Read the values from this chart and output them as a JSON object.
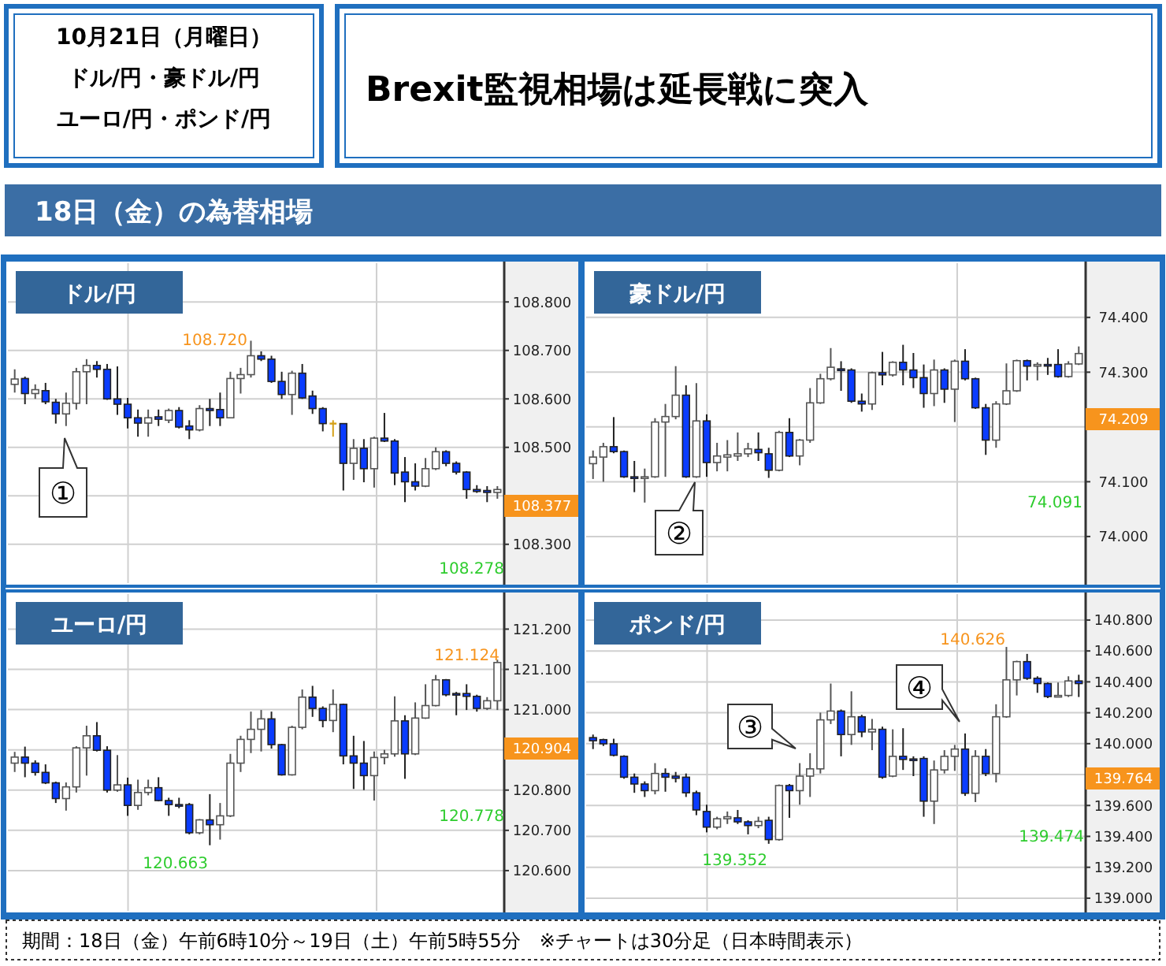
{
  "chart_data": [
    {
      "type": "other",
      "title": "Brexit監視相場は延長戦に突入",
      "subtitle": "18日（金）の為替相場",
      "annotations": [
        "10月21日（月曜日）",
        "ドル/円・豪ドル/円",
        "ユーロ/円・ポンド/円",
        "期間：18日（金）午前6時10分～19日（土）午前5時55分　※チャートは30分足（日本時間表示）"
      ]
    },
    {
      "type": "candlestick",
      "title": "ドル/円",
      "categories": [
        null,
        null,
        null,
        null,
        null,
        null,
        null,
        null,
        null,
        null,
        null,
        null,
        null,
        null,
        null,
        null,
        null,
        null,
        null,
        null,
        null,
        null,
        null,
        null,
        null,
        null,
        null,
        null,
        null,
        null,
        null,
        null,
        null,
        null,
        null,
        null,
        null,
        null,
        null,
        null,
        null,
        null,
        null,
        null,
        null,
        null,
        null,
        null
      ],
      "ohlc": [
        [
          108.63,
          108.661,
          108.613,
          108.641
        ],
        [
          108.642,
          108.646,
          108.589,
          108.611
        ],
        [
          108.611,
          108.63,
          108.6,
          108.619
        ],
        [
          108.617,
          108.633,
          108.589,
          108.594
        ],
        [
          108.593,
          108.6,
          108.549,
          108.569
        ],
        [
          108.569,
          108.613,
          108.544,
          108.591
        ],
        [
          108.591,
          108.664,
          108.578,
          108.656
        ],
        [
          108.656,
          108.682,
          108.589,
          108.669
        ],
        [
          108.669,
          108.678,
          108.644,
          108.661
        ],
        [
          108.661,
          108.672,
          108.598,
          108.6
        ],
        [
          108.6,
          108.667,
          108.567,
          108.589
        ],
        [
          108.589,
          108.602,
          108.539,
          108.561
        ],
        [
          108.561,
          108.578,
          108.522,
          108.55
        ],
        [
          108.55,
          108.578,
          108.522,
          108.561
        ],
        [
          108.563,
          108.578,
          108.544,
          108.558
        ],
        [
          108.556,
          108.58,
          108.55,
          108.576
        ],
        [
          108.576,
          108.583,
          108.539,
          108.542
        ],
        [
          108.544,
          108.556,
          108.517,
          108.536
        ],
        [
          108.536,
          108.587,
          108.533,
          108.58
        ],
        [
          108.58,
          108.6,
          108.544,
          108.576
        ],
        [
          108.578,
          108.613,
          108.544,
          108.561
        ],
        [
          108.561,
          108.656,
          108.561,
          108.642
        ],
        [
          108.642,
          108.664,
          108.611,
          108.65
        ],
        [
          108.65,
          108.72,
          108.644,
          108.689
        ],
        [
          108.689,
          108.698,
          108.678,
          108.682
        ],
        [
          108.682,
          108.689,
          108.633,
          108.636
        ],
        [
          108.636,
          108.656,
          108.6,
          108.609
        ],
        [
          108.609,
          108.658,
          108.567,
          108.653
        ],
        [
          108.653,
          108.672,
          108.6,
          108.602
        ],
        [
          108.606,
          108.617,
          108.569,
          108.58
        ],
        [
          108.58,
          108.583,
          108.533,
          108.549
        ],
        [
          108.549,
          108.556,
          108.522,
          108.549
        ],
        [
          108.549,
          108.549,
          108.411,
          108.467
        ],
        [
          108.467,
          108.517,
          108.433,
          108.498
        ],
        [
          108.498,
          108.517,
          108.428,
          108.456
        ],
        [
          108.456,
          108.522,
          108.417,
          108.519
        ],
        [
          108.519,
          108.571,
          108.511,
          108.513
        ],
        [
          108.513,
          108.517,
          108.422,
          108.447
        ],
        [
          108.449,
          108.48,
          108.387,
          108.429
        ],
        [
          108.429,
          108.467,
          108.411,
          108.42
        ],
        [
          108.42,
          108.478,
          108.418,
          108.456
        ],
        [
          108.456,
          108.5,
          108.453,
          108.491
        ],
        [
          108.491,
          108.494,
          108.461,
          108.467
        ],
        [
          108.467,
          108.471,
          108.444,
          108.449
        ],
        [
          108.449,
          108.451,
          108.394,
          108.413
        ],
        [
          108.413,
          108.422,
          108.406,
          108.409
        ],
        [
          108.411,
          108.42,
          108.387,
          108.407
        ],
        [
          108.407,
          108.42,
          108.394,
          108.413
        ]
      ],
      "ylim": [
        108.22,
        108.88
      ],
      "yticks": [
        {
          "value": 108.3,
          "label": "108.300"
        },
        {
          "value": 108.4,
          "label": null
        },
        {
          "value": 108.5,
          "label": "108.500"
        },
        {
          "value": 108.6,
          "label": "108.600"
        },
        {
          "value": 108.7,
          "label": "108.700"
        },
        {
          "value": 108.8,
          "label": "108.800"
        }
      ],
      "grid": "y",
      "annotations": [
        "108.720",
        "108.278",
        "108.377",
        "①"
      ]
    },
    {
      "type": "candlestick",
      "title": "豪ドル/円",
      "categories": [
        null,
        null,
        null,
        null,
        null,
        null,
        null,
        null,
        null,
        null,
        null,
        null,
        null,
        null,
        null,
        null,
        null,
        null,
        null,
        null,
        null,
        null,
        null,
        null,
        null,
        null,
        null,
        null,
        null,
        null,
        null,
        null,
        null,
        null,
        null,
        null,
        null,
        null,
        null,
        null,
        null,
        null,
        null,
        null,
        null,
        null,
        null,
        null
      ],
      "ohlc": [
        [
          74.133,
          74.157,
          74.105,
          74.145
        ],
        [
          74.145,
          74.171,
          74.1,
          74.164
        ],
        [
          74.164,
          74.218,
          74.152,
          74.155
        ],
        [
          74.155,
          74.157,
          74.107,
          74.109
        ],
        [
          74.109,
          74.138,
          74.081,
          74.106
        ],
        [
          74.106,
          74.124,
          74.062,
          74.109
        ],
        [
          74.109,
          74.216,
          74.107,
          74.209
        ],
        [
          74.209,
          74.242,
          74.109,
          74.219
        ],
        [
          74.219,
          74.311,
          74.214,
          74.258
        ],
        [
          74.258,
          74.276,
          74.107,
          74.109
        ],
        [
          74.109,
          74.28,
          74.107,
          74.211
        ],
        [
          74.211,
          74.223,
          74.109,
          74.135
        ],
        [
          74.135,
          74.171,
          74.119,
          74.147
        ],
        [
          74.145,
          74.176,
          74.119,
          74.149
        ],
        [
          74.147,
          74.19,
          74.138,
          74.151
        ],
        [
          74.151,
          74.171,
          74.145,
          74.16
        ],
        [
          74.159,
          74.19,
          74.138,
          74.153
        ],
        [
          74.151,
          74.162,
          74.107,
          74.121
        ],
        [
          74.121,
          74.193,
          74.119,
          74.19
        ],
        [
          74.19,
          74.216,
          74.145,
          74.147
        ],
        [
          74.147,
          74.178,
          74.13,
          74.176
        ],
        [
          74.176,
          74.271,
          74.171,
          74.244
        ],
        [
          74.244,
          74.297,
          74.242,
          74.288
        ],
        [
          74.288,
          74.344,
          74.285,
          74.309
        ],
        [
          74.306,
          74.32,
          74.266,
          74.303
        ],
        [
          74.304,
          74.307,
          74.244,
          74.247
        ],
        [
          74.247,
          74.261,
          74.228,
          74.242
        ],
        [
          74.242,
          74.301,
          74.231,
          74.299
        ],
        [
          74.299,
          74.337,
          74.276,
          74.295
        ],
        [
          74.295,
          74.32,
          74.292,
          74.318
        ],
        [
          74.318,
          74.35,
          74.276,
          74.304
        ],
        [
          74.304,
          74.335,
          74.271,
          74.29
        ],
        [
          74.29,
          74.314,
          74.235,
          74.261
        ],
        [
          74.261,
          74.323,
          74.238,
          74.304
        ],
        [
          74.304,
          74.307,
          74.244,
          74.269
        ],
        [
          74.269,
          74.323,
          74.209,
          74.32
        ],
        [
          74.32,
          74.342,
          74.285,
          74.288
        ],
        [
          74.288,
          74.29,
          74.233,
          74.235
        ],
        [
          74.235,
          74.242,
          74.149,
          74.176
        ],
        [
          74.176,
          74.247,
          74.162,
          74.242
        ],
        [
          74.242,
          74.316,
          74.24,
          74.266
        ],
        [
          74.266,
          74.323,
          74.264,
          74.321
        ],
        [
          74.321,
          74.323,
          74.285,
          74.311
        ],
        [
          74.311,
          74.318,
          74.285,
          74.314
        ],
        [
          74.314,
          74.326,
          74.295,
          74.312
        ],
        [
          74.314,
          74.342,
          74.29,
          74.292
        ],
        [
          74.292,
          74.32,
          74.29,
          74.315
        ],
        [
          74.315,
          74.347,
          74.313,
          74.334
        ]
      ],
      "ylim": [
        73.915,
        74.499
      ],
      "yticks": [
        {
          "value": 74.0,
          "label": "74.000"
        },
        {
          "value": 74.1,
          "label": "74.100"
        },
        {
          "value": 74.2,
          "label": null
        },
        {
          "value": 74.3,
          "label": "74.300"
        },
        {
          "value": 74.4,
          "label": "74.400"
        }
      ],
      "grid": "y",
      "annotations": [
        "74.091",
        "74.209",
        "②"
      ]
    },
    {
      "type": "candlestick",
      "title": "ユーロ/円",
      "categories": [
        null,
        null,
        null,
        null,
        null,
        null,
        null,
        null,
        null,
        null,
        null,
        null,
        null,
        null,
        null,
        null,
        null,
        null,
        null,
        null,
        null,
        null,
        null,
        null,
        null,
        null,
        null,
        null,
        null,
        null,
        null,
        null,
        null,
        null,
        null,
        null,
        null,
        null,
        null,
        null,
        null,
        null,
        null,
        null,
        null,
        null,
        null,
        null
      ],
      "ohlc": [
        [
          120.867,
          120.895,
          120.845,
          120.882
        ],
        [
          120.882,
          120.908,
          120.832,
          120.867
        ],
        [
          120.867,
          120.874,
          120.836,
          120.844
        ],
        [
          120.844,
          120.864,
          120.815,
          120.818
        ],
        [
          120.818,
          120.821,
          120.768,
          120.779
        ],
        [
          120.779,
          120.819,
          120.749,
          120.808
        ],
        [
          120.808,
          120.909,
          120.794,
          120.905
        ],
        [
          120.905,
          120.96,
          120.836,
          120.935
        ],
        [
          120.935,
          120.969,
          120.896,
          120.899
        ],
        [
          120.899,
          120.909,
          120.794,
          120.8
        ],
        [
          120.8,
          120.887,
          120.796,
          120.813
        ],
        [
          120.813,
          120.831,
          120.736,
          120.762
        ],
        [
          120.762,
          120.826,
          120.751,
          120.794
        ],
        [
          120.794,
          120.826,
          120.787,
          120.806
        ],
        [
          120.806,
          120.832,
          120.772,
          120.774
        ],
        [
          120.774,
          120.781,
          120.736,
          120.764
        ],
        [
          120.764,
          120.781,
          120.755,
          120.762
        ],
        [
          120.764,
          120.768,
          120.69,
          120.694
        ],
        [
          120.694,
          120.728,
          120.69,
          120.726
        ],
        [
          120.726,
          120.79,
          120.663,
          120.714
        ],
        [
          120.714,
          120.768,
          120.677,
          120.736
        ],
        [
          120.736,
          120.89,
          120.733,
          120.867
        ],
        [
          120.867,
          120.935,
          120.845,
          120.926
        ],
        [
          120.926,
          120.995,
          120.892,
          120.951
        ],
        [
          120.951,
          120.999,
          120.896,
          120.977
        ],
        [
          120.977,
          120.995,
          120.903,
          120.913
        ],
        [
          120.913,
          120.915,
          120.836,
          120.838
        ],
        [
          120.838,
          120.96,
          120.836,
          120.956
        ],
        [
          120.956,
          121.05,
          120.951,
          121.031
        ],
        [
          121.031,
          121.059,
          120.982,
          121.003
        ],
        [
          121.003,
          121.008,
          120.956,
          120.973
        ],
        [
          120.973,
          121.05,
          120.944,
          121.013
        ],
        [
          121.013,
          121.015,
          120.864,
          120.885
        ],
        [
          120.885,
          120.935,
          120.803,
          120.867
        ],
        [
          120.867,
          120.922,
          120.8,
          120.836
        ],
        [
          120.836,
          120.896,
          120.774,
          120.881
        ],
        [
          120.881,
          120.9,
          120.864,
          120.89
        ],
        [
          120.89,
          121.033,
          120.883,
          120.972
        ],
        [
          120.972,
          120.986,
          120.828,
          120.89
        ],
        [
          120.89,
          121.018,
          120.887,
          120.979
        ],
        [
          120.979,
          121.063,
          120.977,
          121.01
        ],
        [
          121.01,
          121.086,
          121.008,
          121.074
        ],
        [
          121.074,
          121.076,
          121.033,
          121.037
        ],
        [
          121.04,
          121.044,
          120.986,
          121.037
        ],
        [
          121.04,
          121.063,
          120.999,
          121.033
        ],
        [
          121.033,
          121.037,
          120.995,
          121.003
        ],
        [
          121.003,
          121.031,
          120.999,
          121.022
        ],
        [
          121.022,
          121.124,
          120.999,
          121.117
        ]
      ],
      "ylim": [
        120.5,
        121.287
      ],
      "yticks": [
        {
          "value": 120.6,
          "label": "120.600"
        },
        {
          "value": 120.7,
          "label": "120.700"
        },
        {
          "value": 120.8,
          "label": "120.800"
        },
        {
          "value": 120.9,
          "label": null
        },
        {
          "value": 121.0,
          "label": "121.000"
        },
        {
          "value": 121.1,
          "label": "121.100"
        },
        {
          "value": 121.2,
          "label": "121.200"
        }
      ],
      "grid": "y",
      "annotations": [
        "121.124",
        "120.663",
        "120.778",
        "120.904"
      ]
    },
    {
      "type": "candlestick",
      "title": "ポンド/円",
      "categories": [
        null,
        null,
        null,
        null,
        null,
        null,
        null,
        null,
        null,
        null,
        null,
        null,
        null,
        null,
        null,
        null,
        null,
        null,
        null,
        null,
        null,
        null,
        null,
        null,
        null,
        null,
        null,
        null,
        null,
        null,
        null,
        null,
        null,
        null,
        null,
        null,
        null,
        null,
        null,
        null,
        null,
        null,
        null,
        null,
        null,
        null,
        null,
        null
      ],
      "ohlc": [
        [
          140.039,
          140.059,
          139.965,
          140.019
        ],
        [
          140.026,
          140.032,
          139.985,
          139.999
        ],
        [
          139.999,
          140.032,
          139.918,
          139.925
        ],
        [
          139.918,
          139.925,
          139.773,
          139.783
        ],
        [
          139.783,
          139.807,
          139.682,
          139.739
        ],
        [
          139.739,
          139.756,
          139.655,
          139.696
        ],
        [
          139.696,
          139.874,
          139.672,
          139.807
        ],
        [
          139.807,
          139.84,
          139.689,
          139.783
        ],
        [
          139.79,
          139.817,
          139.749,
          139.776
        ],
        [
          139.783,
          139.807,
          139.655,
          139.682
        ],
        [
          139.682,
          139.696,
          139.537,
          139.571
        ],
        [
          139.561,
          139.605,
          139.426,
          139.46
        ],
        [
          139.46,
          139.527,
          139.446,
          139.514
        ],
        [
          139.514,
          139.561,
          139.48,
          139.527
        ],
        [
          139.52,
          139.571,
          139.48,
          139.494
        ],
        [
          139.494,
          139.504,
          139.413,
          139.47
        ],
        [
          139.47,
          139.527,
          139.453,
          139.497
        ],
        [
          139.504,
          139.527,
          139.352,
          139.379
        ],
        [
          139.379,
          139.736,
          139.372,
          139.729
        ],
        [
          139.729,
          139.739,
          139.52,
          139.696
        ],
        [
          139.696,
          139.874,
          139.605,
          139.79
        ],
        [
          139.79,
          139.938,
          139.655,
          139.837
        ],
        [
          139.837,
          140.201,
          139.807,
          140.154
        ],
        [
          140.154,
          140.389,
          140.127,
          140.211
        ],
        [
          140.211,
          140.221,
          139.918,
          140.059
        ],
        [
          140.059,
          140.339,
          139.992,
          140.174
        ],
        [
          140.174,
          140.187,
          140.042,
          140.076
        ],
        [
          140.076,
          140.16,
          139.958,
          140.093
        ],
        [
          140.093,
          140.11,
          139.773,
          139.783
        ],
        [
          139.79,
          140.093,
          139.783,
          139.918
        ],
        [
          139.918,
          140.1,
          139.83,
          139.898
        ],
        [
          139.901,
          139.918,
          139.79,
          139.894
        ],
        [
          139.904,
          139.918,
          139.527,
          139.628
        ],
        [
          139.628,
          139.891,
          139.48,
          139.83
        ],
        [
          139.83,
          139.958,
          139.807,
          139.918
        ],
        [
          139.918,
          139.992,
          139.824,
          139.965
        ],
        [
          139.965,
          140.066,
          139.662,
          139.679
        ],
        [
          139.679,
          139.958,
          139.622,
          139.918
        ],
        [
          139.918,
          139.965,
          139.79,
          139.807
        ],
        [
          139.807,
          140.255,
          139.749,
          140.174
        ],
        [
          140.174,
          140.626,
          140.167,
          140.413
        ],
        [
          140.413,
          140.537,
          140.312,
          140.531
        ],
        [
          140.531,
          140.581,
          140.413,
          140.423
        ],
        [
          140.423,
          140.436,
          140.329,
          140.389
        ],
        [
          140.389,
          140.396,
          140.295,
          140.305
        ],
        [
          140.305,
          140.396,
          140.302,
          140.312
        ],
        [
          140.312,
          140.436,
          140.302,
          140.406
        ],
        [
          140.406,
          140.446,
          140.302,
          140.389
        ]
      ],
      "ylim": [
        138.918,
        140.968
      ],
      "yticks": [
        {
          "value": 139.0,
          "label": "139.000"
        },
        {
          "value": 139.2,
          "label": "139.200"
        },
        {
          "value": 139.4,
          "label": "139.400"
        },
        {
          "value": 139.6,
          "label": "139.600"
        },
        {
          "value": 139.8,
          "label": null
        },
        {
          "value": 140.0,
          "label": "140.000"
        },
        {
          "value": 140.2,
          "label": "140.200"
        },
        {
          "value": 140.4,
          "label": "140.400"
        },
        {
          "value": 140.6,
          "label": "140.600"
        },
        {
          "value": 140.8,
          "label": "140.800"
        }
      ],
      "grid": "y",
      "annotations": [
        "140.626",
        "139.352",
        "139.474",
        "139.764",
        "③",
        "④"
      ]
    }
  ]
}
